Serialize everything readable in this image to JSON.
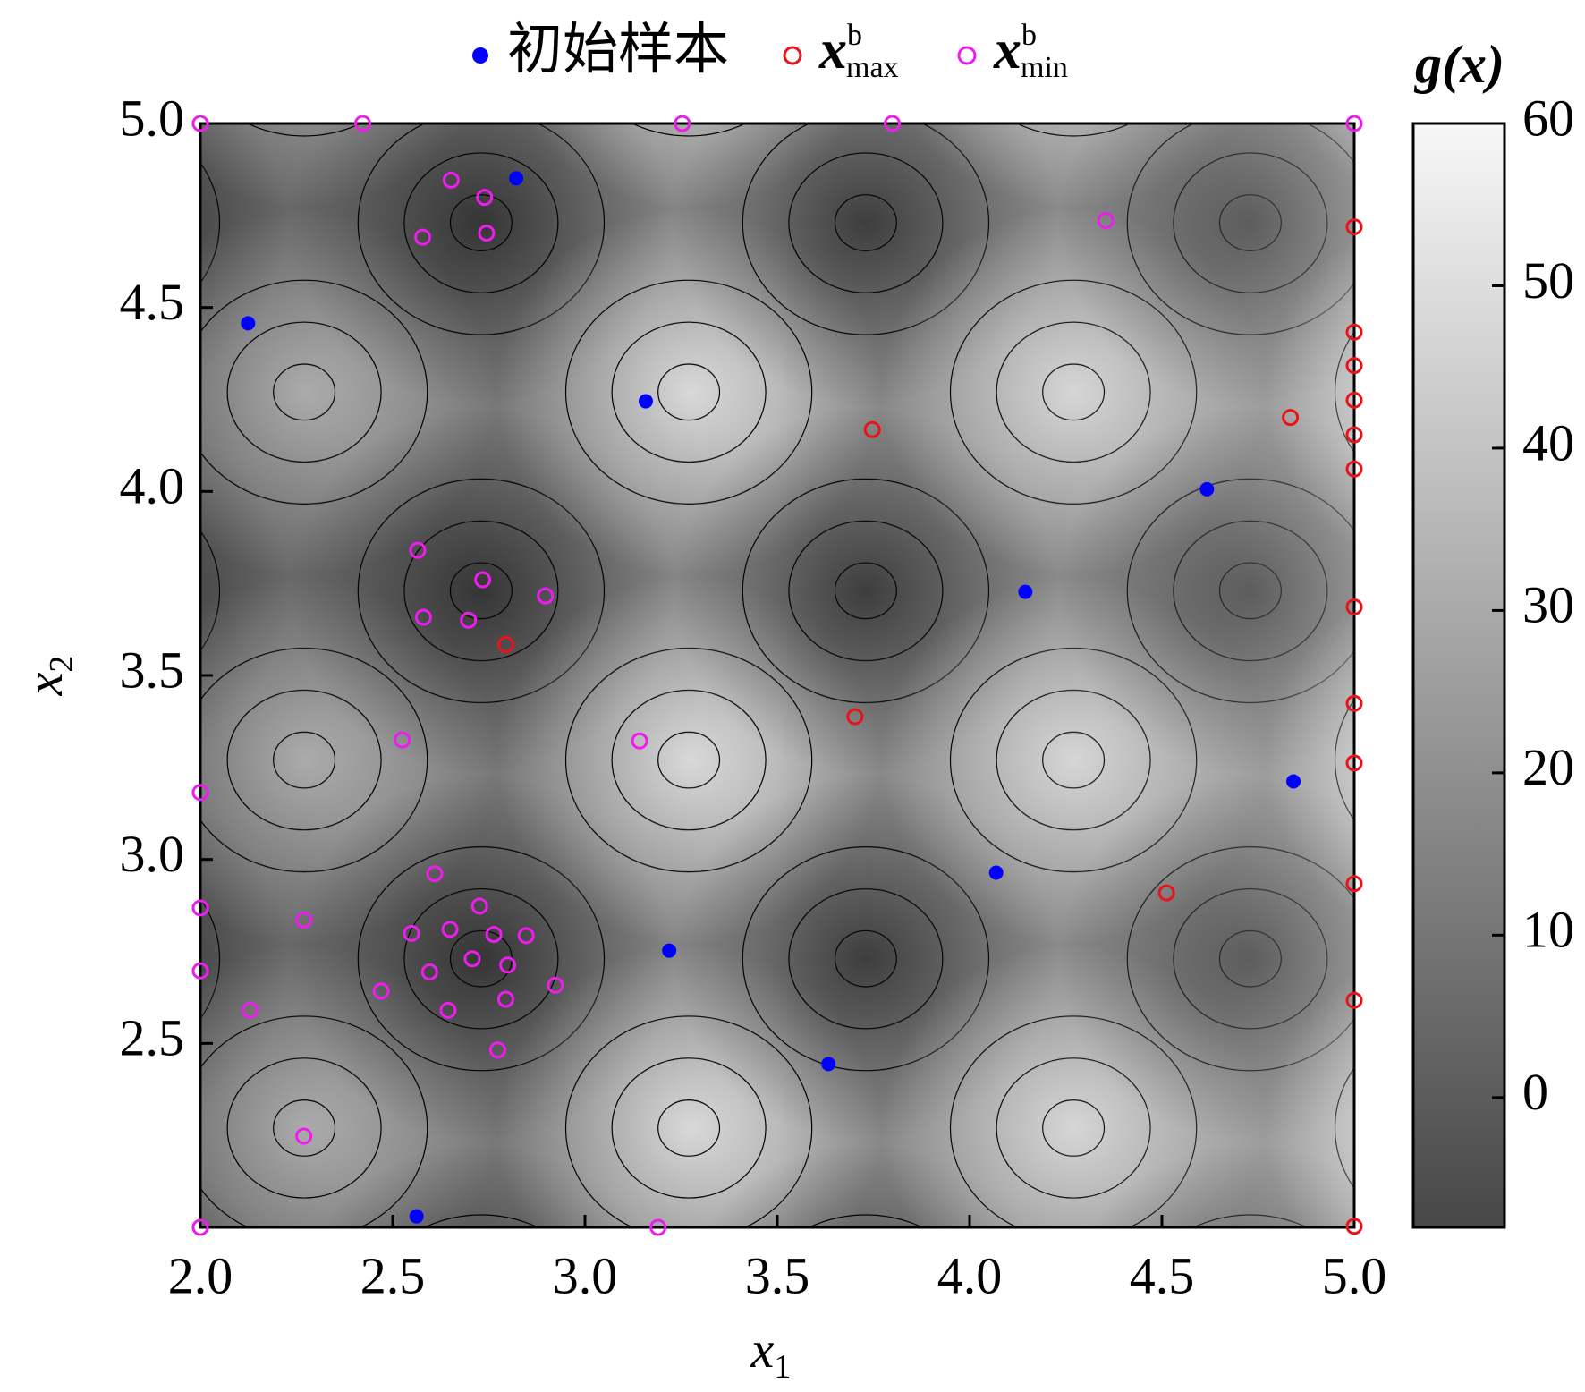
{
  "chart_data": {
    "type": "scatter",
    "xlabel": {
      "text": "x",
      "subscript": "1"
    },
    "ylabel": {
      "text": "x",
      "subscript": "2"
    },
    "xlim": [
      2.0,
      5.0
    ],
    "ylim": [
      2.0,
      5.0
    ],
    "xticks": [
      {
        "value": 2.0,
        "label": "2.0"
      },
      2.5,
      {
        "value": 3.0,
        "label": "3.0"
      },
      3.5,
      {
        "value": 4.0,
        "label": "4.0"
      },
      4.5,
      {
        "value": 5.0,
        "label": "5.0"
      }
    ],
    "yticks": [
      2.5,
      {
        "value": 3.0,
        "label": "3.0"
      },
      3.5,
      {
        "value": 4.0,
        "label": "4.0"
      },
      4.5,
      {
        "value": 5.0,
        "label": "5.0"
      }
    ],
    "colorbar": {
      "title": "g(x)",
      "lim": [
        -8,
        60
      ],
      "ticks": [
        0,
        10,
        20,
        30,
        40,
        50,
        60
      ],
      "colors": [
        "#474747",
        "#f7f7f7"
      ]
    },
    "series": [
      {
        "name": "初始样本",
        "color": "#0000ff",
        "marker": "filled",
        "x": [
          2.821,
          2.124,
          3.158,
          4.617,
          4.145,
          4.842,
          4.069,
          3.219,
          3.633,
          2.562
        ],
        "y": [
          4.851,
          4.457,
          4.245,
          4.006,
          3.727,
          3.212,
          2.964,
          2.752,
          2.444,
          2.03
        ]
      },
      {
        "name": "x",
        "superscript": "b",
        "subscript": "max",
        "color": "#e8141c",
        "marker": "open",
        "x": [
          3.747,
          4.834,
          5.0,
          5.0,
          5.0,
          5.0,
          5.0,
          5.0,
          5.0,
          2.794,
          3.702,
          5.0,
          5.0,
          5.0,
          4.512,
          5.0,
          5.0
        ],
        "y": [
          4.168,
          4.201,
          4.719,
          4.433,
          4.342,
          4.248,
          4.154,
          4.061,
          3.686,
          3.584,
          3.388,
          3.424,
          3.262,
          2.934,
          2.909,
          2.617,
          2.003
        ]
      },
      {
        "name": "x",
        "superscript": "b",
        "subscript": "min",
        "color": "#ee1cee",
        "marker": "open",
        "x": [
          2.0,
          2.422,
          3.253,
          3.799,
          5.0,
          2.652,
          2.739,
          2.578,
          2.744,
          4.354,
          2.565,
          2.734,
          2.897,
          2.58,
          2.697,
          2.525,
          3.142,
          2.0,
          2.609,
          2.0,
          2.269,
          2.726,
          2.649,
          2.549,
          2.763,
          2.847,
          2.707,
          2.799,
          2.596,
          2.0,
          2.923,
          2.47,
          2.644,
          2.794,
          2.129,
          2.773,
          2.269,
          2.0,
          3.19
        ],
        "y": [
          5.0,
          5.0,
          5.0,
          5.0,
          5.0,
          4.846,
          4.799,
          4.691,
          4.702,
          4.736,
          3.84,
          3.76,
          3.716,
          3.658,
          3.65,
          3.325,
          3.322,
          3.182,
          2.961,
          2.868,
          2.835,
          2.873,
          2.81,
          2.799,
          2.796,
          2.793,
          2.73,
          2.713,
          2.694,
          2.697,
          2.658,
          2.642,
          2.59,
          2.62,
          2.59,
          2.482,
          2.248,
          2.0,
          2.0
        ]
      }
    ]
  }
}
